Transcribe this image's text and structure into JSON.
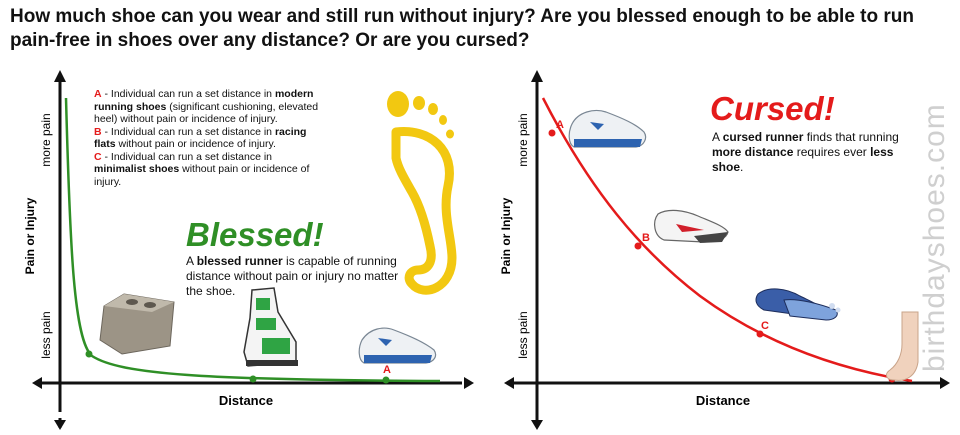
{
  "headline": "How much shoe can you wear and still run without injury?  Are you blessed enough to be able to run pain-free in shoes over any distance?  Or are you cursed?",
  "left_chart": {
    "y_axis_label": "Pain or Injury",
    "y_top_label": "more pain",
    "y_bottom_label": "less pain",
    "x_axis_label": "Distance",
    "point_label_a": "A",
    "legend": [
      {
        "letter": "A",
        "text_before": " - Individual can run a set distance in ",
        "bold": "modern running shoes",
        "text_after": " (significant cushioning, elevated heel) without pain or incidence of injury."
      },
      {
        "letter": "B",
        "text_before": " - Individual can run a set distance in ",
        "bold": "racing flats",
        "text_after": " without pain or incidence of injury."
      },
      {
        "letter": "C",
        "text_before": " - Individual can run a set distance in ",
        "bold": "minimalist shoes",
        "text_after": " without pain or incidence of injury."
      }
    ],
    "heading": "Blessed!",
    "desc_before": "A ",
    "desc_bold": "blessed runner",
    "desc_after": " is capable of running distance without pain or injury no matter the shoe."
  },
  "right_chart": {
    "y_axis_label": "Pain or Injury",
    "y_top_label": "more pain",
    "y_bottom_label": "less pain",
    "x_axis_label": "Distance",
    "point_labels": [
      "A",
      "B",
      "C"
    ],
    "heading": "Cursed!",
    "desc_1": "A ",
    "desc_bold_1": "cursed runner",
    "desc_2": " finds that running ",
    "desc_bold_2": "more distance",
    "desc_3": " requires ever ",
    "desc_bold_3": "less shoe",
    "desc_4": "."
  },
  "watermark": "birthdayshoes.com",
  "colors": {
    "blessed": "#2f8f26",
    "cursed": "#e41b1b",
    "axis": "#111111"
  }
}
